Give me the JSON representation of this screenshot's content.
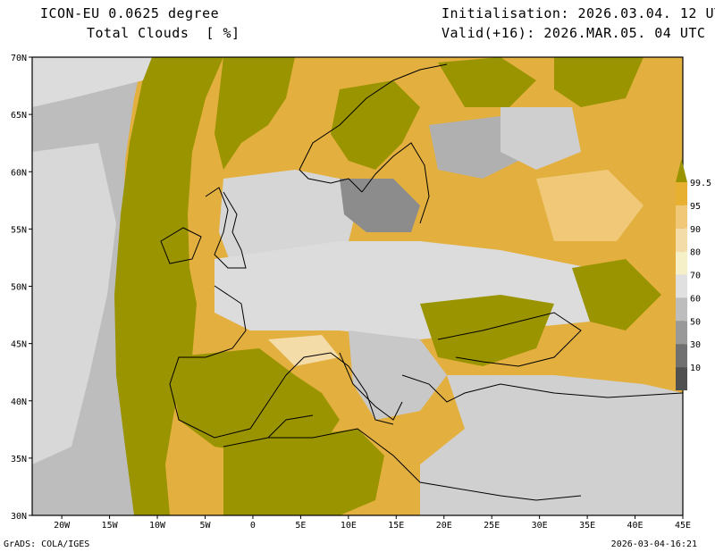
{
  "header": {
    "model": "ICON-EU 0.0625 degree",
    "variable": "Total Clouds  [ %]",
    "init": "Initialisation: 2026.03.04. 12 UTC",
    "valid": "Valid(+16): 2026.MAR.05. 04 UTC"
  },
  "lat_labels": [
    "70N",
    "65N",
    "60N",
    "55N",
    "50N",
    "45N",
    "40N",
    "35N",
    "30N"
  ],
  "lon_labels": [
    "20W",
    "15W",
    "10W",
    "5W",
    "0",
    "5E",
    "10E",
    "15E",
    "20E",
    "25E",
    "30E",
    "35E",
    "40E",
    "45E"
  ],
  "colorbar": {
    "levels": [
      "99.5",
      "95",
      "90",
      "80",
      "70",
      "60",
      "50",
      "30",
      "10"
    ],
    "colors": [
      "#9a9400",
      "#e8b030",
      "#f0c878",
      "#f4dca8",
      "#f6f0c8",
      "#e0e0e0",
      "#bdbdbd",
      "#999999",
      "#707070",
      "#505050"
    ]
  },
  "footer": {
    "credit": "GrADS: COLA/IGES",
    "timestamp": "2026-03-04-16:21"
  }
}
